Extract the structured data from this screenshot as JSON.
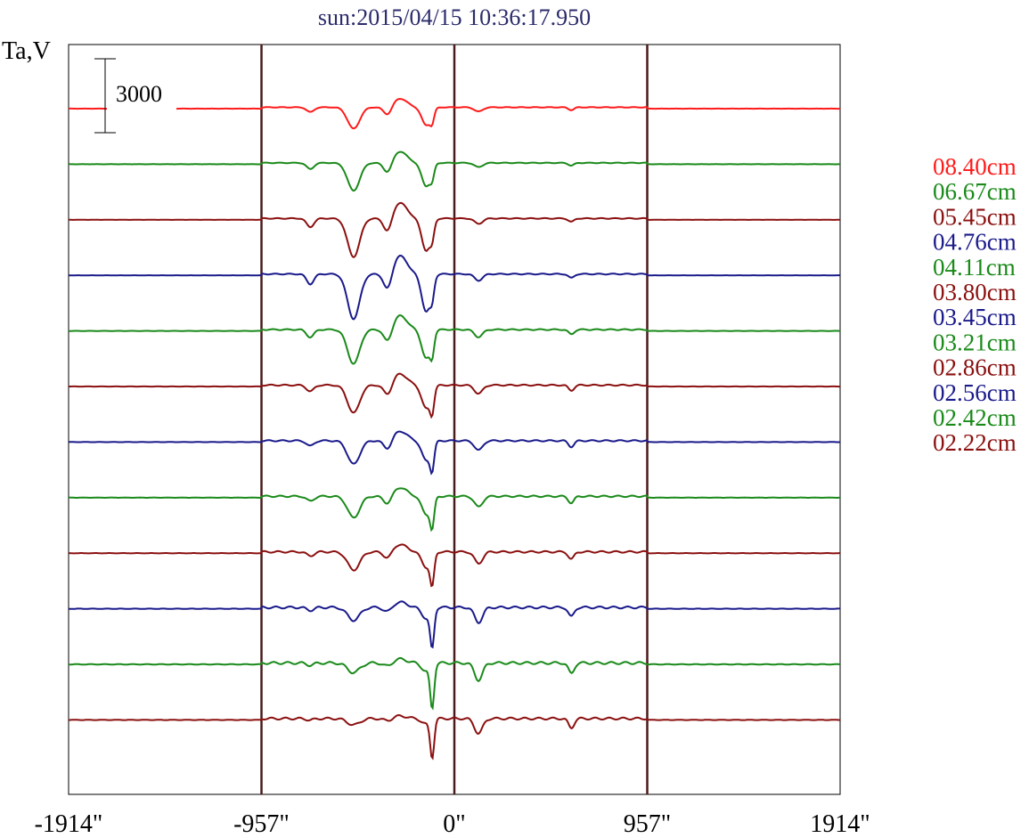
{
  "chart_data": {
    "type": "line",
    "title": "sun:2015/04/15 10:36:17.950",
    "ylabel": "Ta,V",
    "xlabel": "",
    "x_range": [
      -1914,
      1914
    ],
    "x_ticks": [
      {
        "value": -1914,
        "label": "-1914\""
      },
      {
        "value": -957,
        "label": "-957\""
      },
      {
        "value": 0,
        "label": "0\""
      },
      {
        "value": 957,
        "label": "957\""
      },
      {
        "value": 1914,
        "label": "1914\""
      }
    ],
    "vertical_lines": [
      -957,
      0,
      957
    ],
    "scale_bar": {
      "value": 3000,
      "label": "3000"
    },
    "series": [
      {
        "name": "08.40cm",
        "color": "#ff1a1a",
        "depth": 1.0,
        "noise": 0.2
      },
      {
        "name": "06.67cm",
        "color": "#1a8a1a",
        "depth": 1.3,
        "noise": 0.2
      },
      {
        "name": "05.45cm",
        "color": "#8b1010",
        "depth": 1.8,
        "noise": 0.25
      },
      {
        "name": "04.76cm",
        "color": "#1a1a8b",
        "depth": 2.1,
        "noise": 0.3
      },
      {
        "name": "04.11cm",
        "color": "#1a8a1a",
        "depth": 1.6,
        "noise": 0.35
      },
      {
        "name": "03.80cm",
        "color": "#8b1010",
        "depth": 1.3,
        "noise": 0.4
      },
      {
        "name": "03.45cm",
        "color": "#1a1a8b",
        "depth": 1.1,
        "noise": 0.45
      },
      {
        "name": "03.21cm",
        "color": "#1a8a1a",
        "depth": 1.0,
        "noise": 0.5
      },
      {
        "name": "02.86cm",
        "color": "#8b1010",
        "depth": 0.85,
        "noise": 0.55
      },
      {
        "name": "02.56cm",
        "color": "#1a1a8b",
        "depth": 0.6,
        "noise": 0.7
      },
      {
        "name": "02.42cm",
        "color": "#1a8a1a",
        "depth": 0.45,
        "noise": 0.8
      },
      {
        "name": "02.22cm",
        "color": "#8b1010",
        "depth": 0.3,
        "noise": 0.7
      }
    ],
    "grid": false,
    "legend": "right"
  }
}
